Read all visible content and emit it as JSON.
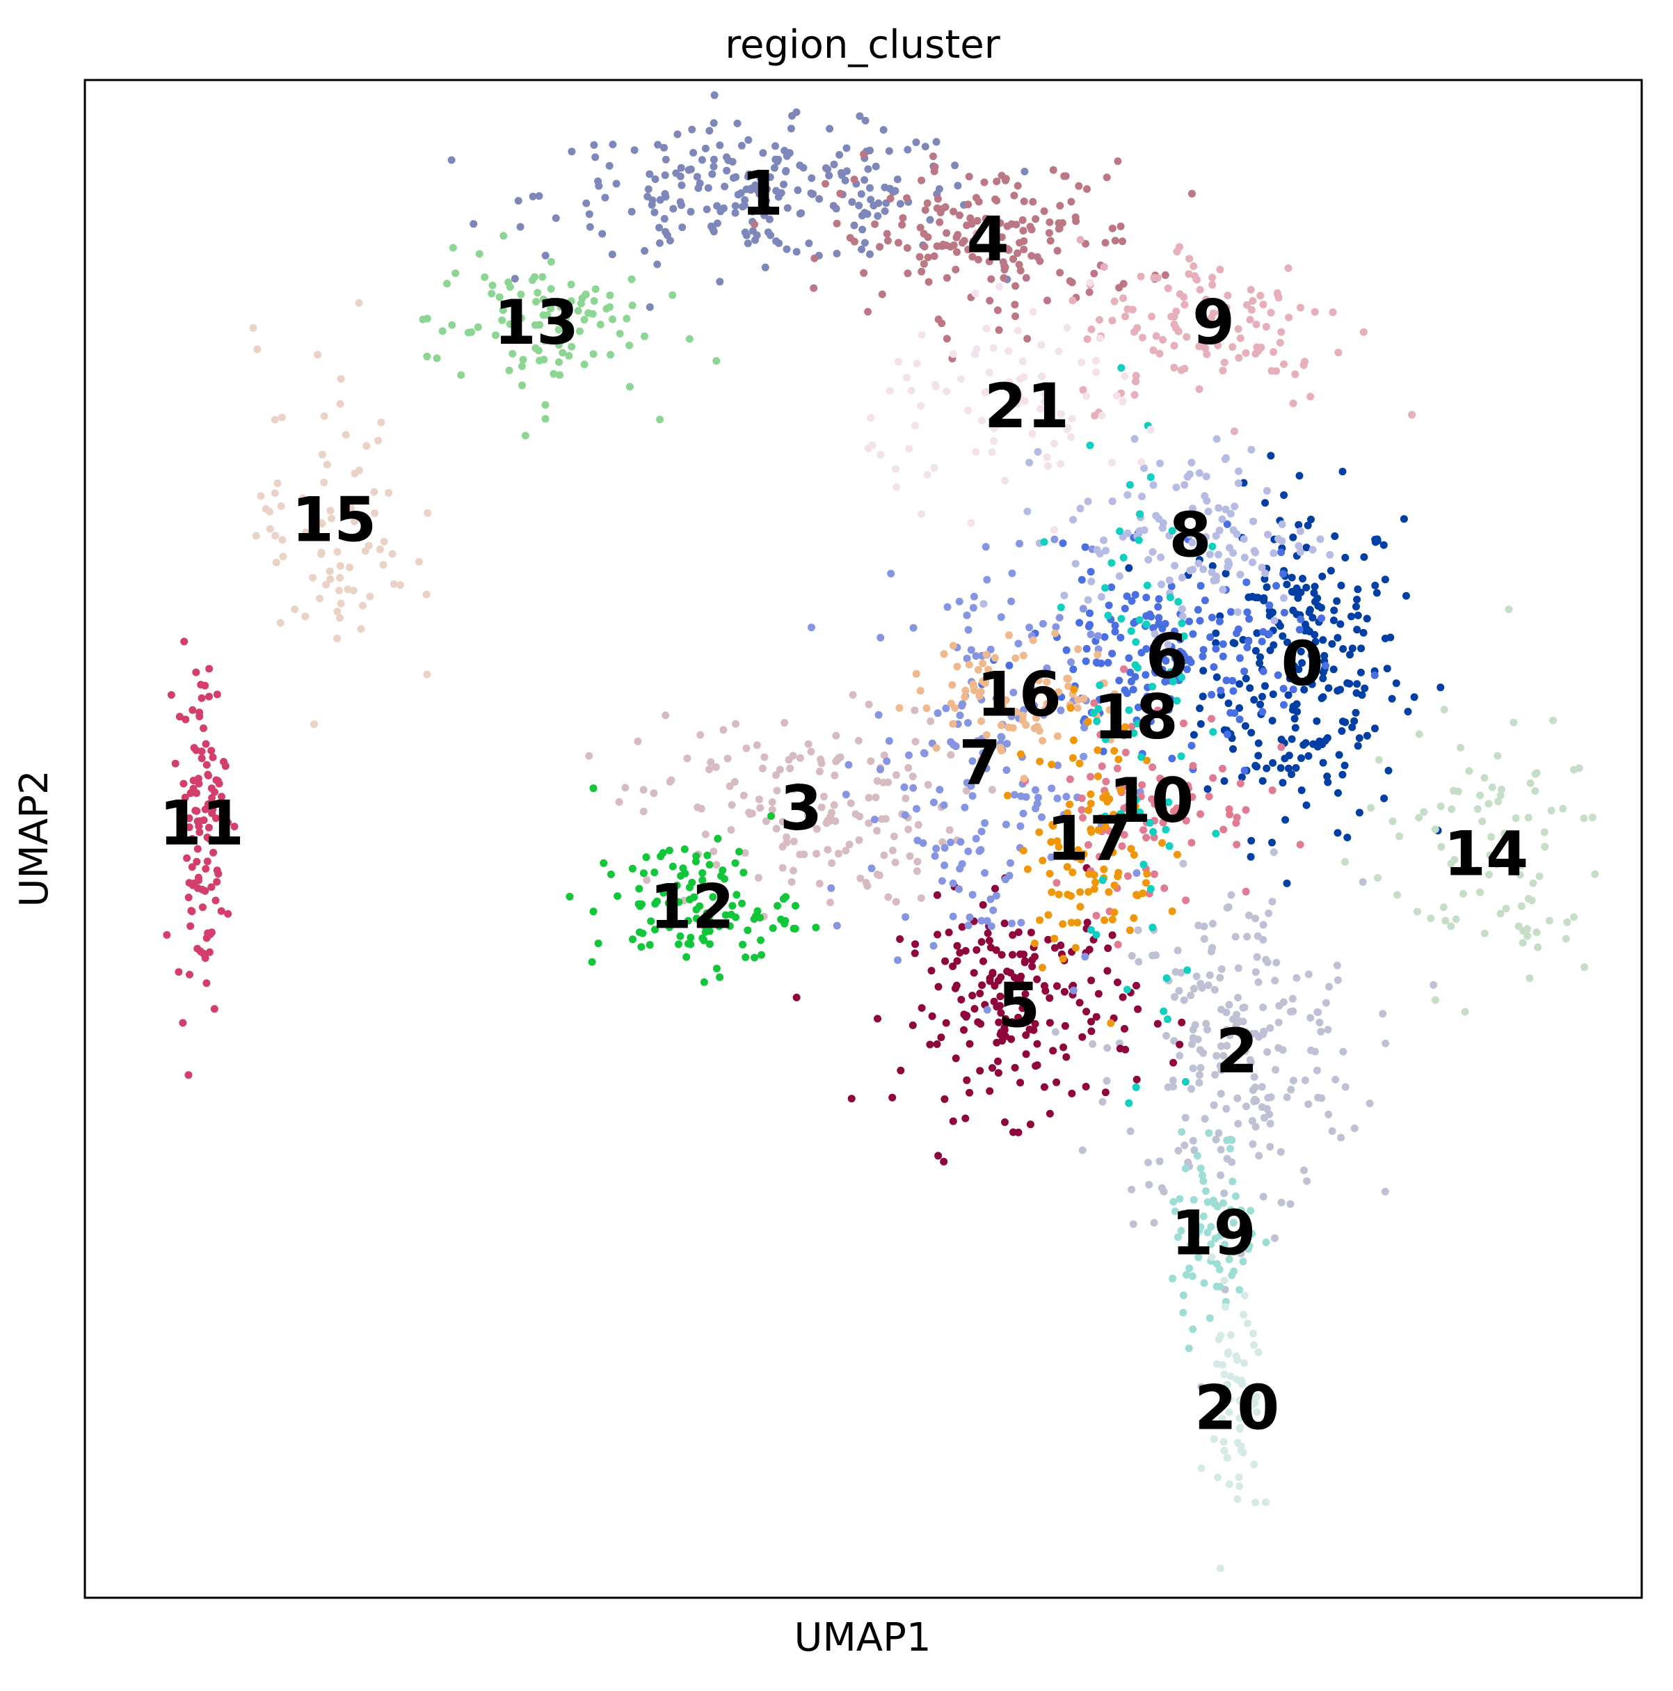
{
  "chart_data": {
    "type": "scatter",
    "title": "region_cluster",
    "xlabel": "UMAP1",
    "ylabel": "UMAP2",
    "xlim": [
      0,
      100
    ],
    "ylim": [
      0,
      100
    ],
    "grid": false,
    "legend": "on data",
    "clusters": [
      {
        "name": "0",
        "color": "#023fa5",
        "cx": 78.2,
        "cy": 61.5,
        "sx": 3.2,
        "sy": 5.5,
        "n": 260
      },
      {
        "name": "1",
        "color": "#7d87b9",
        "cx": 43.5,
        "cy": 92.5,
        "sx": 7.0,
        "sy": 2.2,
        "n": 230
      },
      {
        "name": "2",
        "color": "#bec1d4",
        "cx": 74.0,
        "cy": 36.0,
        "sx": 4.0,
        "sy": 5.5,
        "n": 220
      },
      {
        "name": "3",
        "color": "#d6bcc0",
        "cx": 46.0,
        "cy": 52.0,
        "sx": 5.2,
        "sy": 3.2,
        "n": 160
      },
      {
        "name": "4",
        "color": "#bb7784",
        "cx": 58.0,
        "cy": 89.5,
        "sx": 5.0,
        "sy": 2.5,
        "n": 170
      },
      {
        "name": "5",
        "color": "#8e063b",
        "cx": 60.0,
        "cy": 39.0,
        "sx": 3.8,
        "sy": 3.5,
        "n": 190
      },
      {
        "name": "6",
        "color": "#4a6fe3",
        "cx": 69.5,
        "cy": 62.0,
        "sx": 4.5,
        "sy": 3.0,
        "n": 170
      },
      {
        "name": "7",
        "color": "#8595e1",
        "cx": 57.5,
        "cy": 55.0,
        "sx": 3.6,
        "sy": 7.0,
        "n": 170
      },
      {
        "name": "8",
        "color": "#b5bbe3",
        "cx": 71.0,
        "cy": 70.0,
        "sx": 4.0,
        "sy": 3.0,
        "n": 120
      },
      {
        "name": "9",
        "color": "#e6afb9",
        "cx": 72.5,
        "cy": 84.0,
        "sx": 4.5,
        "sy": 2.8,
        "n": 120
      },
      {
        "name": "10",
        "color": "#e07b91",
        "cx": 68.5,
        "cy": 52.5,
        "sx": 3.5,
        "sy": 3.5,
        "n": 90
      },
      {
        "name": "11",
        "color": "#d33f6a",
        "cx": 7.5,
        "cy": 51.0,
        "sx": 0.8,
        "sy": 5.5,
        "n": 110
      },
      {
        "name": "12",
        "color": "#11c638",
        "cx": 39.0,
        "cy": 45.5,
        "sx": 3.2,
        "sy": 2.2,
        "n": 110
      },
      {
        "name": "13",
        "color": "#8dd593",
        "cx": 29.0,
        "cy": 84.0,
        "sx": 3.5,
        "sy": 2.5,
        "n": 100
      },
      {
        "name": "14",
        "color": "#c6dec7",
        "cx": 90.0,
        "cy": 49.0,
        "sx": 4.0,
        "sy": 4.5,
        "n": 90
      },
      {
        "name": "15",
        "color": "#ead3c6",
        "cx": 16.0,
        "cy": 71.0,
        "sx": 2.5,
        "sy": 6.0,
        "n": 80
      },
      {
        "name": "16",
        "color": "#f0b98d",
        "cx": 60.0,
        "cy": 59.5,
        "sx": 3.5,
        "sy": 1.8,
        "n": 80
      },
      {
        "name": "17",
        "color": "#ef9708",
        "cx": 64.5,
        "cy": 50.0,
        "sx": 2.2,
        "sy": 4.0,
        "n": 100
      },
      {
        "name": "18",
        "color": "#0fcfc0",
        "cx": 67.5,
        "cy": 58.0,
        "sx": 2.0,
        "sy": 13.0,
        "n": 70
      },
      {
        "name": "19",
        "color": "#9cded6",
        "cx": 72.5,
        "cy": 24.0,
        "sx": 1.4,
        "sy": 3.2,
        "n": 70
      },
      {
        "name": "20",
        "color": "#d5eae7",
        "cx": 74.0,
        "cy": 12.5,
        "sx": 0.8,
        "sy": 4.5,
        "n": 60
      },
      {
        "name": "21",
        "color": "#f3e1eb",
        "cx": 60.5,
        "cy": 78.5,
        "sx": 5.0,
        "sy": 3.0,
        "n": 90
      }
    ]
  }
}
